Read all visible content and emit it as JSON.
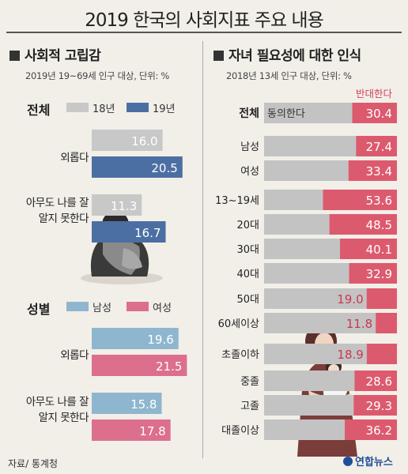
{
  "main_title": "2019 한국의 사회지표 주요 내용",
  "source": "자료/ 통계청",
  "logo": "연합뉴스",
  "colors": {
    "y18": "#c8c8c8",
    "y19": "#4c6fa3",
    "male": "#8fb6cf",
    "female": "#dc6f8c",
    "agree": "#c3c3c3",
    "oppose": "#dc5a6e"
  },
  "left": {
    "title": "사회적 고립감",
    "subtitle": "2019년 19~69세 인구 대상, 단위: %",
    "group1_label": "전체",
    "group2_label": "성별",
    "legend1": [
      "18년",
      "19년"
    ],
    "legend2": [
      "남성",
      "여성"
    ],
    "categories": [
      "외롭다",
      "아무도 나를 잘\n알지 못한다"
    ]
  },
  "right": {
    "title": "자녀 필요성에 대한 인식",
    "subtitle": "2018년 13세 인구 대상, 단위: %",
    "agree_label": "동의한다",
    "oppose_label": "반대한다"
  },
  "chart_data": [
    {
      "type": "bar",
      "title": "사회적 고립감",
      "subtitle": "2019년 19~69세 인구 대상, 단위: %",
      "group": "전체",
      "categories": [
        "외롭다",
        "아무도 나를 잘 알지 못한다"
      ],
      "series": [
        {
          "name": "18년",
          "values": [
            16.0,
            11.3
          ]
        },
        {
          "name": "19년",
          "values": [
            20.5,
            16.7
          ]
        }
      ]
    },
    {
      "type": "bar",
      "group": "성별",
      "categories": [
        "외롭다",
        "아무도 나를 잘 알지 못한다"
      ],
      "series": [
        {
          "name": "남성",
          "values": [
            19.6,
            15.8
          ]
        },
        {
          "name": "여성",
          "values": [
            21.5,
            17.8
          ]
        }
      ]
    },
    {
      "type": "bar",
      "stacked": true,
      "title": "자녀 필요성에 대한 인식",
      "subtitle": "2018년 13세 인구 대상, 단위: %",
      "categories": [
        "전체",
        "남성",
        "여성",
        "13~19세",
        "20대",
        "30대",
        "40대",
        "50대",
        "60세이상",
        "초졸이하",
        "중졸",
        "고졸",
        "대졸이상"
      ],
      "series": [
        {
          "name": "반대한다",
          "values": [
            30.4,
            27.4,
            33.4,
            53.6,
            48.5,
            40.1,
            32.9,
            19.0,
            11.8,
            18.9,
            28.6,
            29.3,
            36.2
          ]
        }
      ],
      "value_labels": [
        "30.4",
        "27.4",
        "33.4",
        "53.6",
        "48.5",
        "40.1",
        "32.9",
        "19.0",
        "11.8",
        "18.9",
        "28.6",
        "29.3",
        "36.2"
      ]
    }
  ]
}
